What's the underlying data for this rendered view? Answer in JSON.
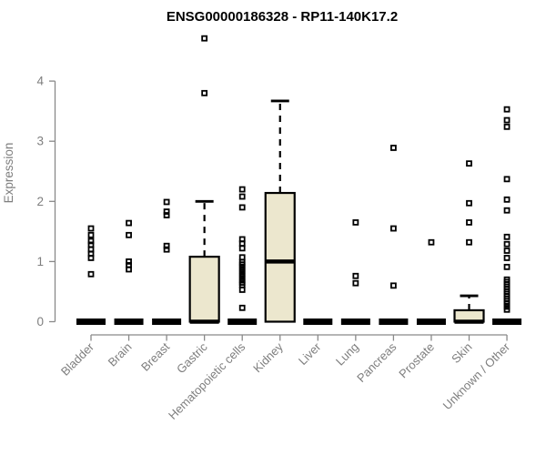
{
  "chart_data": {
    "type": "boxplot",
    "title": "ENSG00000186328 - RP11-140K17.2",
    "ylabel": "Expression",
    "xlabel": "",
    "yticks": [
      0,
      1,
      2,
      3,
      4
    ],
    "ylim": [
      0,
      4.8
    ],
    "grid": false,
    "legend": false,
    "categories": [
      "Bladder",
      "Brain",
      "Breast",
      "Gastric",
      "Hematopoietic cells",
      "Kidney",
      "Liver",
      "Lung",
      "Pancreas",
      "Prostate",
      "Skin",
      "Unknown / Other"
    ],
    "boxes": [
      {
        "category": "Bladder",
        "q1": 0,
        "median": 0,
        "q3": 0,
        "whisker_low": 0,
        "whisker_high": 0,
        "outliers": [
          1.55,
          1.44,
          1.34,
          1.28,
          1.2,
          1.13,
          1.06,
          0.79
        ]
      },
      {
        "category": "Brain",
        "q1": 0,
        "median": 0,
        "q3": 0,
        "whisker_low": 0,
        "whisker_high": 0,
        "outliers": [
          1.64,
          1.44,
          1.0,
          0.94,
          0.87
        ]
      },
      {
        "category": "Breast",
        "q1": 0,
        "median": 0,
        "q3": 0,
        "whisker_low": 0,
        "whisker_high": 0,
        "outliers": [
          1.99,
          1.83,
          1.77,
          1.26,
          1.2
        ]
      },
      {
        "category": "Gastric",
        "q1": 0,
        "median": 0,
        "q3": 1.08,
        "whisker_low": 0,
        "whisker_high": 2.0,
        "outliers": [
          4.71,
          3.8
        ]
      },
      {
        "category": "Hematopoietic cells",
        "q1": 0,
        "median": 0,
        "q3": 0,
        "whisker_low": 0,
        "whisker_high": 0,
        "outliers": [
          2.2,
          2.08,
          1.9,
          1.37,
          1.3,
          1.22,
          1.07,
          0.99,
          0.95,
          0.9,
          0.85,
          0.8,
          0.75,
          0.7,
          0.65,
          0.61,
          0.53,
          0.23
        ]
      },
      {
        "category": "Kidney",
        "q1": 0,
        "median": 1.0,
        "q3": 2.14,
        "whisker_low": 0,
        "whisker_high": 3.67,
        "outliers": []
      },
      {
        "category": "Liver",
        "q1": 0,
        "median": 0,
        "q3": 0,
        "whisker_low": 0,
        "whisker_high": 0,
        "outliers": []
      },
      {
        "category": "Lung",
        "q1": 0,
        "median": 0,
        "q3": 0,
        "whisker_low": 0,
        "whisker_high": 0,
        "outliers": [
          1.65,
          0.76,
          0.64
        ]
      },
      {
        "category": "Pancreas",
        "q1": 0,
        "median": 0,
        "q3": 0,
        "whisker_low": 0,
        "whisker_high": 0,
        "outliers": [
          2.89,
          1.55,
          0.6
        ]
      },
      {
        "category": "Prostate",
        "q1": 0,
        "median": 0,
        "q3": 0,
        "whisker_low": 0,
        "whisker_high": 0,
        "outliers": [
          1.32
        ]
      },
      {
        "category": "Skin",
        "q1": 0,
        "median": 0,
        "q3": 0.19,
        "whisker_low": 0,
        "whisker_high": 0.43,
        "outliers": [
          2.63,
          1.97,
          1.65,
          1.32
        ]
      },
      {
        "category": "Unknown / Other",
        "q1": 0,
        "median": 0,
        "q3": 0,
        "whisker_low": 0,
        "whisker_high": 0,
        "outliers": [
          3.53,
          3.35,
          3.24,
          2.37,
          2.03,
          1.85,
          1.41,
          1.29,
          1.18,
          1.06,
          0.91,
          0.7,
          0.66,
          0.62,
          0.58,
          0.54,
          0.5,
          0.46,
          0.42,
          0.38,
          0.34,
          0.3,
          0.25,
          0.2
        ]
      }
    ],
    "colors": {
      "box_fill": "#ece7ce",
      "box_stroke": "#000000",
      "axis": "#898989",
      "tick_label": "#7e7e7e",
      "title": "#000000"
    }
  }
}
